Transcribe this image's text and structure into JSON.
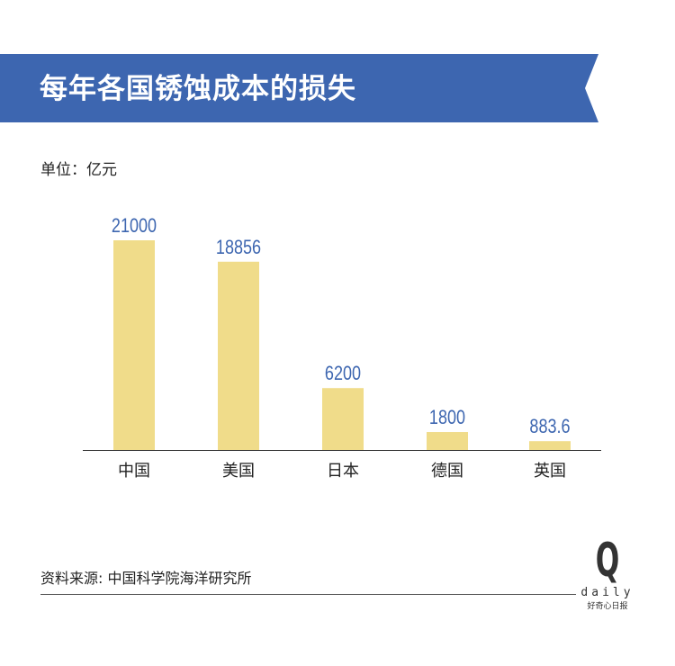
{
  "header": {
    "title": "每年各国锈蚀成本的损失",
    "banner_color": "#3d66b0"
  },
  "unit_label": "单位：亿元",
  "source": "资料来源: 中国科学院海洋研究所",
  "logo": {
    "mark": "Q",
    "word": "daily",
    "tagline": "好奇心日报"
  },
  "chart_data": {
    "type": "bar",
    "categories": [
      "中国",
      "美国",
      "日本",
      "德国",
      "英国"
    ],
    "values": [
      21000,
      18856,
      6200,
      1800,
      883.6
    ],
    "value_labels": [
      "21000",
      "18856",
      "6200",
      "1800",
      "883.6"
    ],
    "bar_color": "#f0dc8a",
    "label_color": "#3d66b0",
    "ylim": [
      0,
      21000
    ],
    "grid": false
  }
}
